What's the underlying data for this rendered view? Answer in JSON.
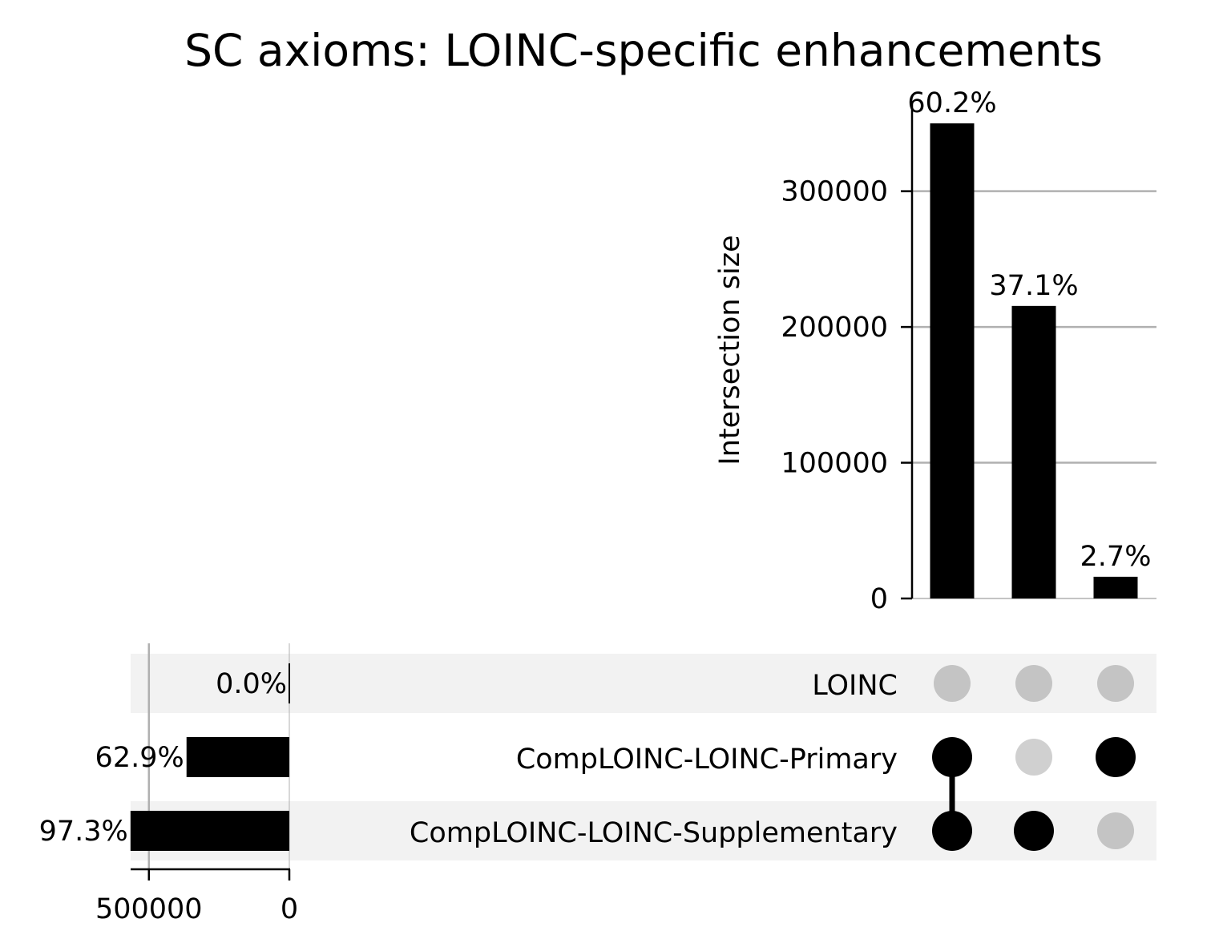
{
  "chart_data": {
    "type": "upset",
    "title": "SC axioms: LOINC-specific enhancements",
    "colors": {
      "bar": "#000000",
      "grid": "#b0b0b0",
      "stripe": "#f2f2f2",
      "dot_inactive_stripe": "#c4c4c4",
      "dot_inactive_plain": "#d0d0d0"
    },
    "intersections": {
      "ylabel": "Intersection size",
      "ylim": [
        0,
        360000
      ],
      "yticks": [
        0,
        100000,
        200000,
        300000
      ],
      "bars": [
        {
          "value": 350000,
          "label": "60.2%",
          "members": [
            "CompLOINC-LOINC-Primary",
            "CompLOINC-LOINC-Supplementary"
          ]
        },
        {
          "value": 215500,
          "label": "37.1%",
          "members": [
            "CompLOINC-LOINC-Supplementary"
          ]
        },
        {
          "value": 16000,
          "label": "2.7%",
          "members": [
            "CompLOINC-LOINC-Primary"
          ]
        }
      ]
    },
    "sets": {
      "xlim": [
        565000,
        0
      ],
      "xticks": [
        500000,
        0
      ],
      "rows": [
        {
          "name": "LOINC",
          "value": 0,
          "label": "0.0%"
        },
        {
          "name": "CompLOINC-LOINC-Primary",
          "value": 366000,
          "label": "62.9%"
        },
        {
          "name": "CompLOINC-LOINC-Supplementary",
          "value": 565500,
          "label": "97.3%"
        }
      ]
    }
  }
}
